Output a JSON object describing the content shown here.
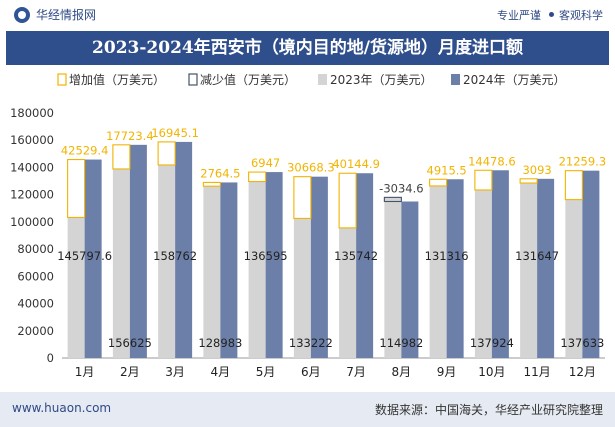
{
  "header": {
    "brand": "华经情报网",
    "tag1": "专业严谨",
    "tag2": "客观科学"
  },
  "title": "2023-2024年西安市（境内目的地/货源地）月度进口额",
  "legend": {
    "inc": "增加值（万美元）",
    "dec": "减少值（万美元）",
    "y2023": "2023年（万美元）",
    "y2024": "2024年（万美元）"
  },
  "footer": {
    "site": "www.huaon.com",
    "source": "数据来源：中国海关，华经产业研究院整理"
  },
  "colors": {
    "bar2023": "#d4d4d4",
    "bar2024": "#6c7fa8",
    "increase": "#f2b400",
    "decrease": "#44546a",
    "title_bg": "#2f4e8c"
  },
  "chart_data": {
    "type": "bar",
    "categories": [
      "1月",
      "2月",
      "3月",
      "4月",
      "5月",
      "6月",
      "7月",
      "8月",
      "9月",
      "10月",
      "11月",
      "12月"
    ],
    "series": [
      {
        "name": "2023年（万美元）",
        "values": [
          103268.3,
          138901.6,
          141816.9,
          126218.5,
          129648,
          102553.7,
          95597.1,
          118016.6,
          126400.5,
          123445.4,
          128554,
          116374
        ]
      },
      {
        "name": "2024年（万美元）",
        "values": [
          145797.6,
          156625,
          158762,
          128983,
          136595,
          133222,
          135742,
          114982,
          131316,
          137924,
          131647,
          137633
        ]
      }
    ],
    "changes": [
      42529.4,
      17723.4,
      16945.1,
      2764.5,
      6947,
      30668.3,
      40144.9,
      -3034.6,
      4915.5,
      14478.6,
      3093,
      21259.3
    ],
    "ylim": [
      0,
      180000
    ],
    "yticks": [
      0,
      20000,
      40000,
      60000,
      80000,
      100000,
      120000,
      140000,
      160000,
      180000
    ],
    "grid": false,
    "legend_position": "top-left"
  }
}
